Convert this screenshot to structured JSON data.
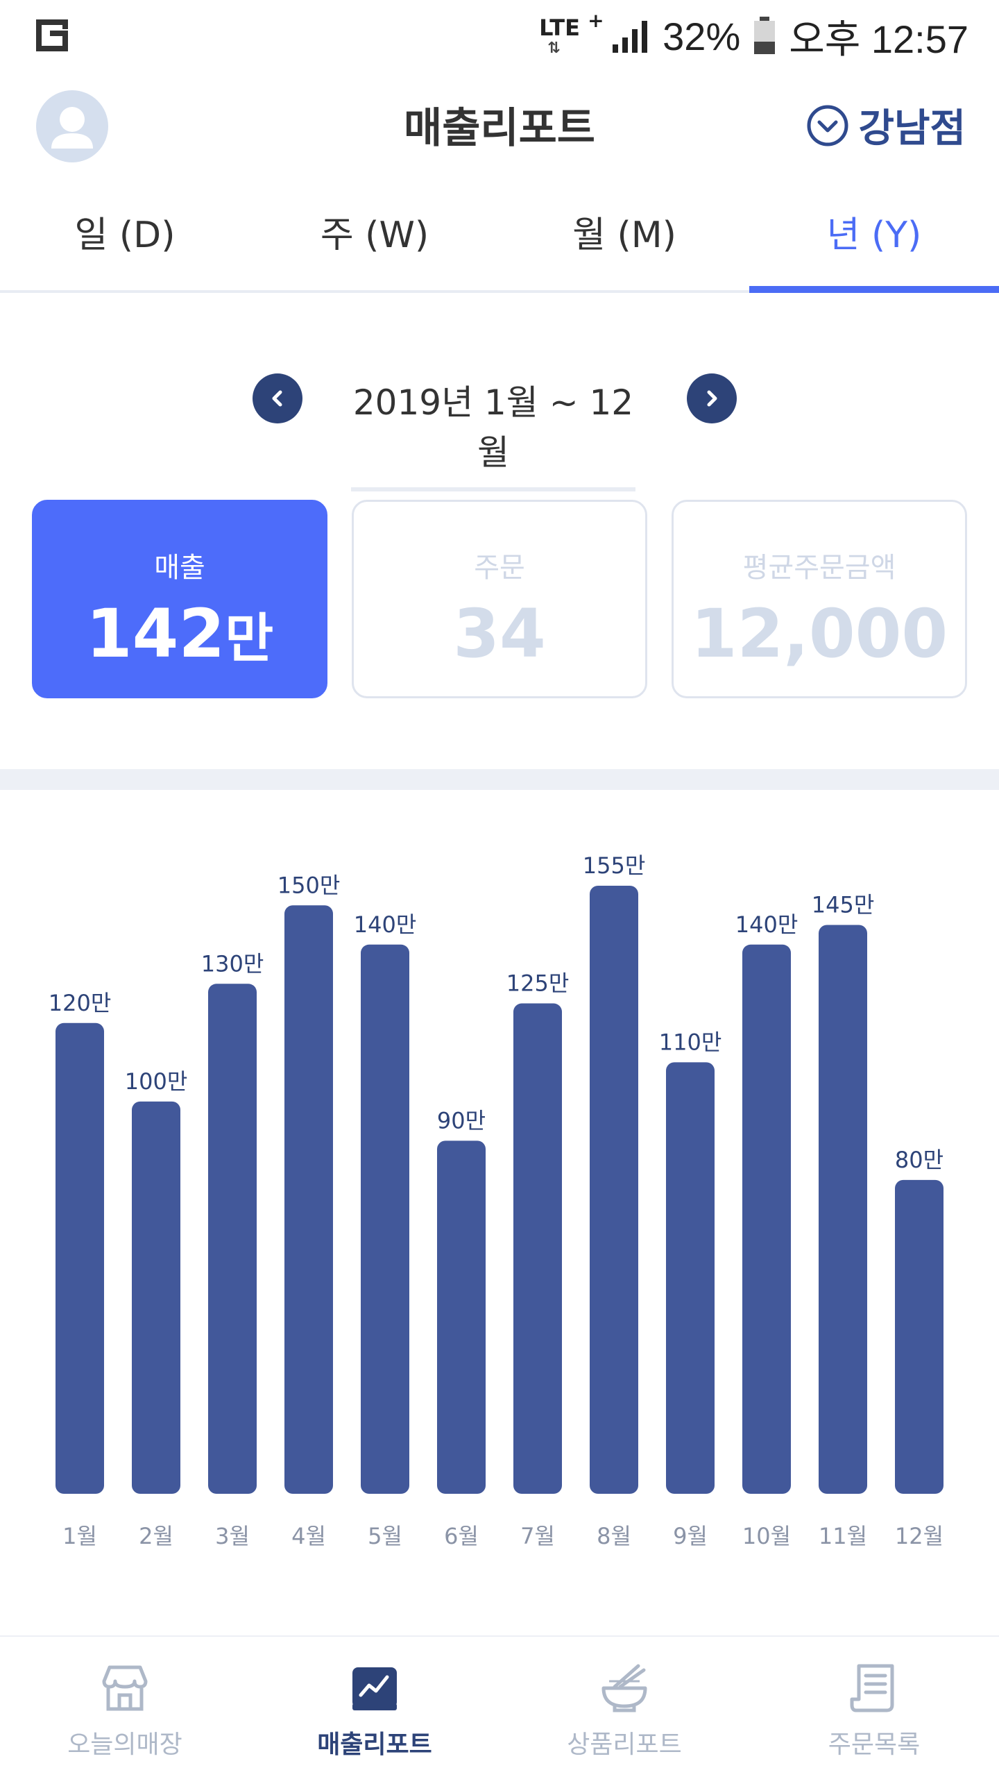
{
  "status_bar": {
    "network": "LTE",
    "network_plus": "+",
    "battery": "32%",
    "time": "오후 12:57"
  },
  "header": {
    "title": "매출리포트",
    "store": "강남점"
  },
  "tabs": [
    {
      "label": "일 (D)",
      "active": false
    },
    {
      "label": "주 (W)",
      "active": false
    },
    {
      "label": "월 (M)",
      "active": false
    },
    {
      "label": "년 (Y)",
      "active": true
    }
  ],
  "period": {
    "label": "2019년 1월 ~ 12월"
  },
  "cards": {
    "sales": {
      "label": "매출",
      "value": "142",
      "unit": "만"
    },
    "orders": {
      "label": "주문",
      "value": "34"
    },
    "avg_order": {
      "label": "평균주문금액",
      "value": "12,000"
    }
  },
  "chart_data": {
    "type": "bar",
    "categories": [
      "1월",
      "2월",
      "3월",
      "4월",
      "5월",
      "6월",
      "7월",
      "8월",
      "9월",
      "10월",
      "11월",
      "12월"
    ],
    "values": [
      120,
      100,
      130,
      150,
      140,
      90,
      125,
      155,
      110,
      140,
      145,
      80
    ],
    "data_labels": [
      "120만",
      "100만",
      "130만",
      "150만",
      "140만",
      "90만",
      "125만",
      "155만",
      "110만",
      "140만",
      "145만",
      "80만"
    ],
    "unit": "만",
    "bar_color": "#42589a",
    "ylim": [
      0,
      155
    ],
    "grid": false
  },
  "bottom_nav": [
    {
      "label": "오늘의매장",
      "icon": "store-icon",
      "active": false
    },
    {
      "label": "매출리포트",
      "icon": "sales-chart-icon",
      "active": true
    },
    {
      "label": "상품리포트",
      "icon": "noodle-bowl-icon",
      "active": false
    },
    {
      "label": "주문목록",
      "icon": "receipt-icon",
      "active": false
    }
  ],
  "colors": {
    "accent": "#4d6cfa",
    "navy": "#2d4378",
    "bar": "#42589a"
  }
}
